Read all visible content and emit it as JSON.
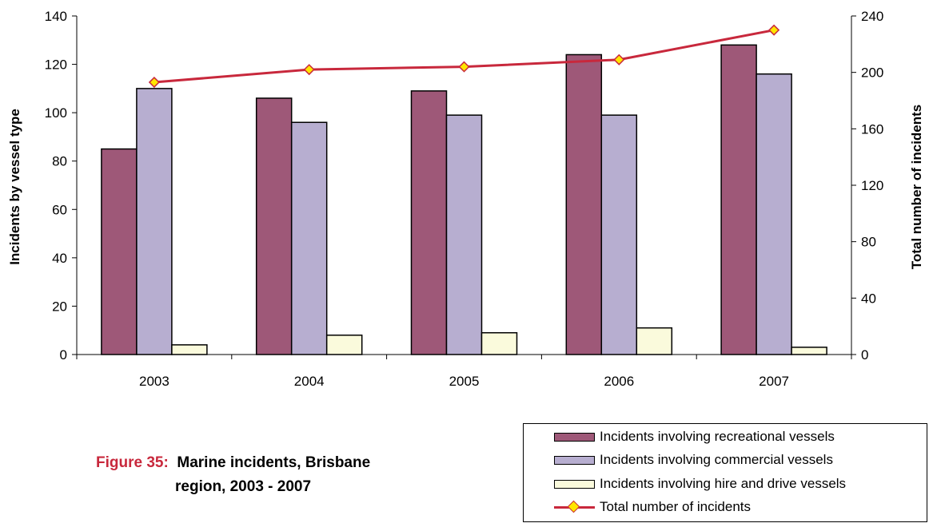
{
  "chart_data": {
    "type": "bar",
    "categories": [
      "2003",
      "2004",
      "2005",
      "2006",
      "2007"
    ],
    "series": [
      {
        "name": "Incidents involving recreational vessels",
        "values": [
          85,
          106,
          109,
          124,
          128
        ],
        "color": "#9e5878",
        "axis": "left"
      },
      {
        "name": "Incidents involving commercial vessels",
        "values": [
          110,
          96,
          99,
          99,
          116
        ],
        "color": "#b7aed0",
        "axis": "left"
      },
      {
        "name": "Incidents involving hire and drive vessels",
        "values": [
          4,
          8,
          9,
          11,
          3
        ],
        "color": "#fafadc",
        "axis": "left"
      },
      {
        "name": "Total number of incidents",
        "type": "line",
        "values": [
          193,
          202,
          204,
          209,
          230
        ],
        "color": "#c8283c",
        "marker_color": "#ffe600",
        "axis": "right"
      }
    ],
    "ylabel": "Incidents by vessel type",
    "y2label": "Total number of incidents",
    "ylim": [
      0,
      140
    ],
    "y2lim": [
      0,
      240
    ],
    "yticks": [
      "0",
      "20",
      "40",
      "60",
      "80",
      "100",
      "120",
      "140"
    ],
    "y2ticks": [
      "0",
      "40",
      "80",
      "120",
      "160",
      "200",
      "240"
    ],
    "grid": false,
    "legend_position": "bottom-right"
  },
  "caption": {
    "figure_label": "Figure 35:",
    "line1": "Marine incidents, Brisbane",
    "line2": "region, 2003 - 2007"
  }
}
